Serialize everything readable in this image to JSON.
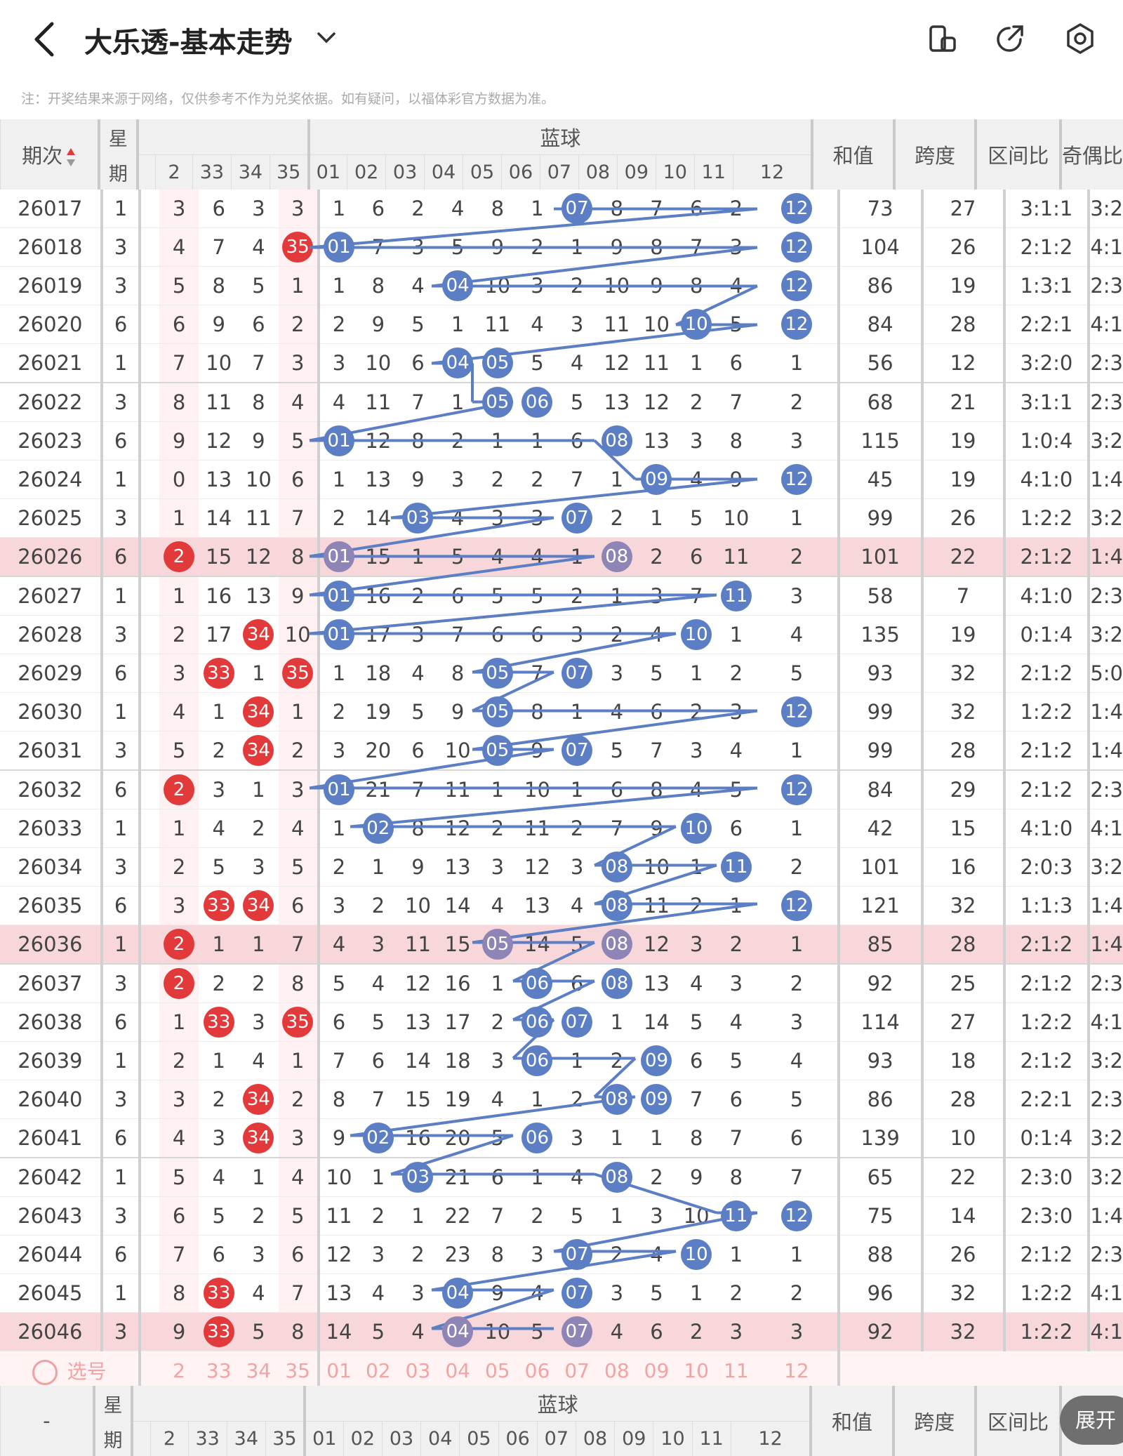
{
  "header": {
    "title": "大乐透-基本走势",
    "icons": [
      "back-icon",
      "chevron-down-icon",
      "layout-icon",
      "share-icon",
      "settings-icon"
    ]
  },
  "notice": "注：开奖结果来源于网络，仅供参考不作为兑奖依据。如有疑问，以福体彩官方数据为准。",
  "table": {
    "col_period": "期次",
    "col_week": "星期",
    "blue_label": "蓝球",
    "col_sum": "和值",
    "col_span": "跨度",
    "col_range": "区间比",
    "col_parity": "奇偶比",
    "red_cols": [
      "2",
      "33",
      "34",
      "35"
    ],
    "blue_cols": [
      "01",
      "02",
      "03",
      "04",
      "05",
      "06",
      "07",
      "08",
      "09",
      "10",
      "11",
      "12"
    ],
    "rows": [
      {
        "p": "26017",
        "w": "1",
        "r": [
          "3",
          "6",
          "3",
          "3"
        ],
        "b": [
          "1",
          "6",
          "2",
          "4",
          "8",
          "1",
          "07",
          "8",
          "7",
          "6",
          "2",
          "12"
        ],
        "s": "73",
        "sp": "27",
        "rg": "3:1:1",
        "pa": "3:2"
      },
      {
        "p": "26018",
        "w": "3",
        "r": [
          "4",
          "7",
          "4",
          "35"
        ],
        "b": [
          "01",
          "7",
          "3",
          "5",
          "9",
          "2",
          "1",
          "9",
          "8",
          "7",
          "3",
          "12"
        ],
        "s": "104",
        "sp": "26",
        "rg": "2:1:2",
        "pa": "4:1"
      },
      {
        "p": "26019",
        "w": "3",
        "r": [
          "5",
          "8",
          "5",
          "1"
        ],
        "b": [
          "1",
          "8",
          "4",
          "04",
          "10",
          "3",
          "2",
          "10",
          "9",
          "8",
          "4",
          "12"
        ],
        "s": "86",
        "sp": "19",
        "rg": "1:3:1",
        "pa": "2:3"
      },
      {
        "p": "26020",
        "w": "6",
        "r": [
          "6",
          "9",
          "6",
          "2"
        ],
        "b": [
          "2",
          "9",
          "5",
          "1",
          "11",
          "4",
          "3",
          "11",
          "10",
          "10",
          "5",
          "12"
        ],
        "s": "84",
        "sp": "28",
        "rg": "2:2:1",
        "pa": "4:1"
      },
      {
        "p": "26021",
        "w": "1",
        "r": [
          "7",
          "10",
          "7",
          "3"
        ],
        "b": [
          "3",
          "10",
          "6",
          "04",
          "05",
          "5",
          "4",
          "12",
          "11",
          "1",
          "6",
          "1"
        ],
        "s": "56",
        "sp": "12",
        "rg": "3:2:0",
        "pa": "2:3"
      },
      {
        "p": "26022",
        "w": "3",
        "r": [
          "8",
          "11",
          "8",
          "4"
        ],
        "b": [
          "4",
          "11",
          "7",
          "1",
          "05",
          "06",
          "5",
          "13",
          "12",
          "2",
          "7",
          "2"
        ],
        "s": "68",
        "sp": "21",
        "rg": "3:1:1",
        "pa": "2:3"
      },
      {
        "p": "26023",
        "w": "6",
        "r": [
          "9",
          "12",
          "9",
          "5"
        ],
        "b": [
          "01",
          "12",
          "8",
          "2",
          "1",
          "1",
          "6",
          "08",
          "13",
          "3",
          "8",
          "3"
        ],
        "s": "115",
        "sp": "19",
        "rg": "1:0:4",
        "pa": "3:2"
      },
      {
        "p": "26024",
        "w": "1",
        "r": [
          "0",
          "13",
          "10",
          "6"
        ],
        "b": [
          "1",
          "13",
          "9",
          "3",
          "2",
          "2",
          "7",
          "1",
          "09",
          "4",
          "9",
          "12"
        ],
        "s": "45",
        "sp": "19",
        "rg": "4:1:0",
        "pa": "1:4"
      },
      {
        "p": "26025",
        "w": "3",
        "r": [
          "1",
          "14",
          "11",
          "7"
        ],
        "b": [
          "2",
          "14",
          "03",
          "4",
          "3",
          "3",
          "07",
          "2",
          "1",
          "5",
          "10",
          "1"
        ],
        "s": "99",
        "sp": "26",
        "rg": "1:2:2",
        "pa": "3:2"
      },
      {
        "p": "26026",
        "w": "6",
        "r": [
          "2",
          "15",
          "12",
          "8"
        ],
        "b": [
          "01",
          "15",
          "1",
          "5",
          "4",
          "4",
          "1",
          "08",
          "2",
          "6",
          "11",
          "2"
        ],
        "s": "101",
        "sp": "22",
        "rg": "2:1:2",
        "pa": "1:4"
      },
      {
        "p": "26027",
        "w": "1",
        "r": [
          "1",
          "16",
          "13",
          "9"
        ],
        "b": [
          "01",
          "16",
          "2",
          "6",
          "5",
          "5",
          "2",
          "1",
          "3",
          "7",
          "11",
          "3"
        ],
        "s": "58",
        "sp": "7",
        "rg": "4:1:0",
        "pa": "2:3"
      },
      {
        "p": "26028",
        "w": "3",
        "r": [
          "2",
          "17",
          "34",
          "10"
        ],
        "b": [
          "01",
          "17",
          "3",
          "7",
          "6",
          "6",
          "3",
          "2",
          "4",
          "10",
          "1",
          "4"
        ],
        "s": "135",
        "sp": "19",
        "rg": "0:1:4",
        "pa": "3:2"
      },
      {
        "p": "26029",
        "w": "6",
        "r": [
          "3",
          "33",
          "1",
          "35"
        ],
        "b": [
          "1",
          "18",
          "4",
          "8",
          "05",
          "7",
          "07",
          "3",
          "5",
          "1",
          "2",
          "5"
        ],
        "s": "93",
        "sp": "32",
        "rg": "2:1:2",
        "pa": "5:0"
      },
      {
        "p": "26030",
        "w": "1",
        "r": [
          "4",
          "1",
          "34",
          "1"
        ],
        "b": [
          "2",
          "19",
          "5",
          "9",
          "05",
          "8",
          "1",
          "4",
          "6",
          "2",
          "3",
          "12"
        ],
        "s": "99",
        "sp": "32",
        "rg": "1:2:2",
        "pa": "1:4"
      },
      {
        "p": "26031",
        "w": "3",
        "r": [
          "5",
          "2",
          "34",
          "2"
        ],
        "b": [
          "3",
          "20",
          "6",
          "10",
          "05",
          "9",
          "07",
          "5",
          "7",
          "3",
          "4",
          "1"
        ],
        "s": "99",
        "sp": "28",
        "rg": "2:1:2",
        "pa": "1:4"
      },
      {
        "p": "26032",
        "w": "6",
        "r": [
          "2",
          "3",
          "1",
          "3"
        ],
        "b": [
          "01",
          "21",
          "7",
          "11",
          "1",
          "10",
          "1",
          "6",
          "8",
          "4",
          "5",
          "12"
        ],
        "s": "84",
        "sp": "29",
        "rg": "2:1:2",
        "pa": "2:3"
      },
      {
        "p": "26033",
        "w": "1",
        "r": [
          "1",
          "4",
          "2",
          "4"
        ],
        "b": [
          "1",
          "02",
          "8",
          "12",
          "2",
          "11",
          "2",
          "7",
          "9",
          "10",
          "6",
          "1"
        ],
        "s": "42",
        "sp": "15",
        "rg": "4:1:0",
        "pa": "4:1"
      },
      {
        "p": "26034",
        "w": "3",
        "r": [
          "2",
          "5",
          "3",
          "5"
        ],
        "b": [
          "2",
          "1",
          "9",
          "13",
          "3",
          "12",
          "3",
          "08",
          "10",
          "1",
          "11",
          "2"
        ],
        "s": "101",
        "sp": "16",
        "rg": "2:0:3",
        "pa": "3:2"
      },
      {
        "p": "26035",
        "w": "6",
        "r": [
          "3",
          "33",
          "34",
          "6"
        ],
        "b": [
          "3",
          "2",
          "10",
          "14",
          "4",
          "13",
          "4",
          "08",
          "11",
          "2",
          "1",
          "12"
        ],
        "s": "121",
        "sp": "32",
        "rg": "1:1:3",
        "pa": "1:4"
      },
      {
        "p": "26036",
        "w": "1",
        "r": [
          "2",
          "1",
          "1",
          "7"
        ],
        "b": [
          "4",
          "3",
          "11",
          "15",
          "05",
          "14",
          "5",
          "08",
          "12",
          "3",
          "2",
          "1"
        ],
        "s": "85",
        "sp": "28",
        "rg": "2:1:2",
        "pa": "1:4"
      },
      {
        "p": "26037",
        "w": "3",
        "r": [
          "2",
          "2",
          "2",
          "8"
        ],
        "b": [
          "5",
          "4",
          "12",
          "16",
          "1",
          "06",
          "6",
          "08",
          "13",
          "4",
          "3",
          "2"
        ],
        "s": "92",
        "sp": "25",
        "rg": "2:1:2",
        "pa": "2:3"
      },
      {
        "p": "26038",
        "w": "6",
        "r": [
          "1",
          "33",
          "3",
          "35"
        ],
        "b": [
          "6",
          "5",
          "13",
          "17",
          "2",
          "06",
          "07",
          "1",
          "14",
          "5",
          "4",
          "3"
        ],
        "s": "114",
        "sp": "27",
        "rg": "1:2:2",
        "pa": "4:1"
      },
      {
        "p": "26039",
        "w": "1",
        "r": [
          "2",
          "1",
          "4",
          "1"
        ],
        "b": [
          "7",
          "6",
          "14",
          "18",
          "3",
          "06",
          "1",
          "2",
          "09",
          "6",
          "5",
          "4"
        ],
        "s": "93",
        "sp": "18",
        "rg": "2:1:2",
        "pa": "3:2"
      },
      {
        "p": "26040",
        "w": "3",
        "r": [
          "3",
          "2",
          "34",
          "2"
        ],
        "b": [
          "8",
          "7",
          "15",
          "19",
          "4",
          "1",
          "2",
          "08",
          "09",
          "7",
          "6",
          "5"
        ],
        "s": "86",
        "sp": "28",
        "rg": "2:2:1",
        "pa": "2:3"
      },
      {
        "p": "26041",
        "w": "6",
        "r": [
          "4",
          "3",
          "34",
          "3"
        ],
        "b": [
          "9",
          "02",
          "16",
          "20",
          "5",
          "06",
          "3",
          "1",
          "1",
          "8",
          "7",
          "6"
        ],
        "s": "139",
        "sp": "10",
        "rg": "0:1:4",
        "pa": "3:2"
      },
      {
        "p": "26042",
        "w": "1",
        "r": [
          "5",
          "4",
          "1",
          "4"
        ],
        "b": [
          "10",
          "1",
          "03",
          "21",
          "6",
          "1",
          "4",
          "08",
          "2",
          "9",
          "8",
          "7"
        ],
        "s": "65",
        "sp": "22",
        "rg": "2:3:0",
        "pa": "3:2"
      },
      {
        "p": "26043",
        "w": "3",
        "r": [
          "6",
          "5",
          "2",
          "5"
        ],
        "b": [
          "11",
          "2",
          "1",
          "22",
          "7",
          "2",
          "5",
          "1",
          "3",
          "10",
          "11",
          "12"
        ],
        "s": "75",
        "sp": "14",
        "rg": "2:3:0",
        "pa": "1:4"
      },
      {
        "p": "26044",
        "w": "6",
        "r": [
          "7",
          "6",
          "3",
          "6"
        ],
        "b": [
          "12",
          "3",
          "2",
          "23",
          "8",
          "3",
          "07",
          "2",
          "4",
          "10",
          "1",
          "1"
        ],
        "s": "88",
        "sp": "26",
        "rg": "2:1:2",
        "pa": "2:3"
      },
      {
        "p": "26045",
        "w": "1",
        "r": [
          "8",
          "33",
          "4",
          "7"
        ],
        "b": [
          "13",
          "4",
          "3",
          "04",
          "9",
          "4",
          "07",
          "3",
          "5",
          "1",
          "2",
          "2"
        ],
        "s": "96",
        "sp": "32",
        "rg": "1:2:2",
        "pa": "4:1"
      },
      {
        "p": "26046",
        "w": "3",
        "r": [
          "9",
          "33",
          "5",
          "8"
        ],
        "b": [
          "14",
          "5",
          "4",
          "04",
          "10",
          "5",
          "07",
          "4",
          "6",
          "2",
          "3",
          "3"
        ],
        "s": "92",
        "sp": "32",
        "rg": "1:2:2",
        "pa": "4:1"
      }
    ],
    "red_ball_cells": {
      "26018": [
        3
      ],
      "26028": [
        2
      ],
      "26029": [
        1,
        3
      ],
      "26030": [
        2
      ],
      "26031": [
        2
      ],
      "26032": [
        0
      ],
      "26035": [
        1,
        2
      ],
      "26036": [
        0
      ],
      "26037": [
        0
      ],
      "26038": [
        1,
        3
      ],
      "26040": [
        2
      ],
      "26041": [
        2
      ],
      "26045": [
        1
      ],
      "26046": [
        1
      ],
      "26026": [
        0
      ]
    },
    "blue_hits": {
      "26017": [
        6,
        11
      ],
      "26018": [
        0,
        11
      ],
      "26019": [
        3,
        11
      ],
      "26020": [
        9,
        11
      ],
      "26021": [
        3,
        4
      ],
      "26022": [
        4,
        5
      ],
      "26023": [
        0,
        7
      ],
      "26024": [
        8,
        11
      ],
      "26025": [
        2,
        6
      ],
      "26026": [
        0,
        7
      ],
      "26027": [
        0,
        10
      ],
      "26028": [
        0,
        9
      ],
      "26029": [
        4,
        6
      ],
      "26030": [
        4,
        11
      ],
      "26031": [
        4,
        6
      ],
      "26032": [
        0,
        11
      ],
      "26033": [
        1,
        9
      ],
      "26034": [
        7,
        10
      ],
      "26035": [
        7,
        11
      ],
      "26036": [
        4,
        7
      ],
      "26037": [
        5,
        7
      ],
      "26038": [
        5,
        6
      ],
      "26039": [
        5,
        8
      ],
      "26040": [
        7,
        8
      ],
      "26041": [
        1,
        5
      ],
      "26042": [
        2,
        7
      ],
      "26043": [
        10,
        11
      ],
      "26044": [
        6,
        9
      ],
      "26045": [
        3,
        6
      ],
      "26046": [
        3,
        6
      ]
    },
    "highlight_periods": [
      "26026",
      "26036",
      "26046"
    ],
    "select_label": "选号",
    "footer_period_dash": "-"
  },
  "expand_button": "展开",
  "colors": {
    "red": "#e23a3a",
    "blue": "#5b7ec4",
    "highlight": "#f7d7da"
  }
}
